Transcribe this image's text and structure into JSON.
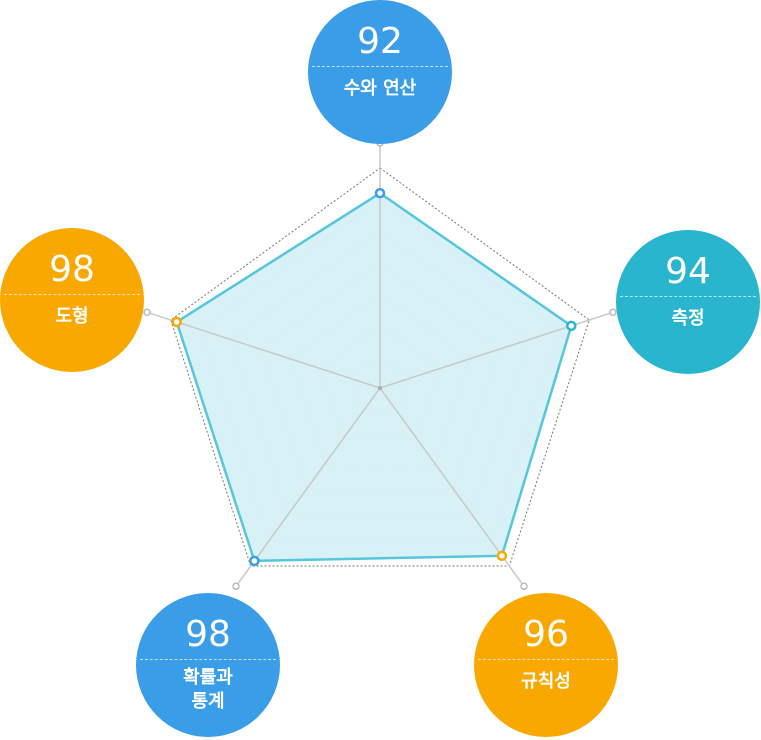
{
  "chart_data": {
    "type": "radar",
    "categories": [
      "수와 연산",
      "측정",
      "규칙성",
      "확률과 통계",
      "도형"
    ],
    "values": [
      92,
      94,
      96,
      98,
      98
    ],
    "colors": [
      "#3a9de8",
      "#2ab5cf",
      "#f9a800",
      "#3a9de8",
      "#f9a800"
    ],
    "rlim": [
      30,
      100
    ],
    "rticks": [
      40,
      50,
      60,
      70,
      80,
      90,
      100
    ],
    "fill": "#d4eff5",
    "line_color": "#55c6dc"
  }
}
